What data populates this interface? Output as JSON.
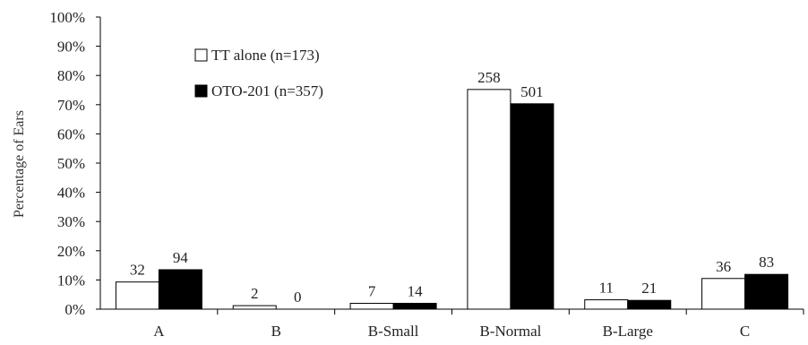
{
  "chart_data": {
    "type": "bar",
    "categories": [
      "A",
      "B",
      "B-Small",
      "B-Normal",
      "B-Large",
      "C"
    ],
    "series": [
      {
        "name": "TT alone (n=173)",
        "color": "#ffffff",
        "values": [
          9.3,
          1.2,
          2.0,
          75.2,
          3.2,
          10.5
        ],
        "labels": [
          "32",
          "2",
          "7",
          "258",
          "11",
          "36"
        ]
      },
      {
        "name": "OTO-201 (n=357)",
        "color": "#000000",
        "values": [
          13.5,
          0,
          2.0,
          70.3,
          3.0,
          11.9
        ],
        "labels": [
          "94",
          "0",
          "14",
          "501",
          "21",
          "83"
        ]
      }
    ],
    "ylabel": "Percentage of Ears",
    "ylim": [
      0,
      100
    ],
    "yticks": [
      "0%",
      "10%",
      "20%",
      "30%",
      "40%",
      "50%",
      "60%",
      "70%",
      "80%",
      "90%",
      "100%"
    ],
    "legend_position": "top-left",
    "grid": false
  }
}
